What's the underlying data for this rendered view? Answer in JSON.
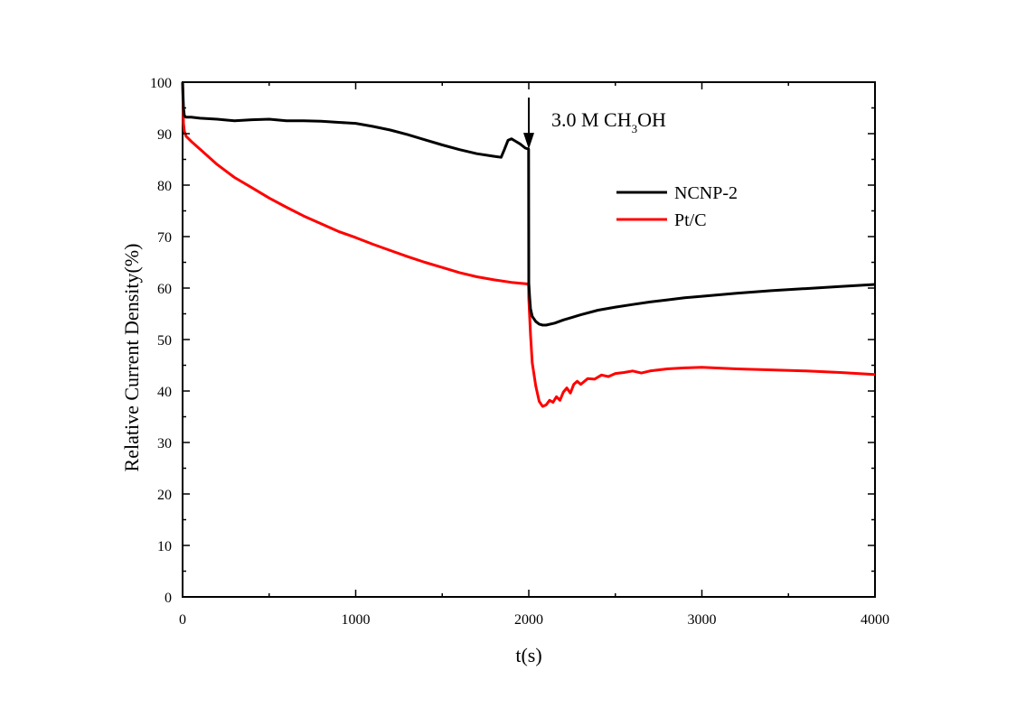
{
  "chart_data": {
    "type": "line",
    "xlabel": "t(s)",
    "ylabel": "Relative Current Density(%)",
    "xlim": [
      0,
      4000
    ],
    "ylim": [
      0,
      100
    ],
    "x_ticks": [
      0,
      1000,
      2000,
      3000,
      4000
    ],
    "y_ticks": [
      0,
      10,
      20,
      30,
      40,
      50,
      60,
      70,
      80,
      90,
      100
    ],
    "x_tick_labels": [
      "0",
      "1000",
      "2000",
      "3000",
      "4000"
    ],
    "y_tick_labels": [
      "0",
      "10",
      "20",
      "30",
      "40",
      "50",
      "60",
      "70",
      "80",
      "90",
      "100"
    ],
    "grid": false,
    "legend_position": "top-right",
    "annotation": {
      "text_main": "3.0 M CH",
      "text_sub": "3",
      "text_tail": "OH",
      "x": 2000,
      "y_tip": 87,
      "y_start": 97
    },
    "series": [
      {
        "name": "NCNP-2",
        "color": "#000000",
        "x": [
          0,
          5,
          10,
          20,
          50,
          100,
          200,
          300,
          400,
          500,
          600,
          700,
          800,
          900,
          1000,
          1100,
          1200,
          1300,
          1400,
          1500,
          1600,
          1700,
          1800,
          1840,
          1860,
          1880,
          1900,
          1920,
          1950,
          1980,
          1999,
          2000,
          2005,
          2010,
          2020,
          2040,
          2060,
          2080,
          2100,
          2150,
          2200,
          2300,
          2400,
          2500,
          2600,
          2700,
          2800,
          2900,
          3000,
          3200,
          3400,
          3600,
          3800,
          4000
        ],
        "y": [
          100,
          95,
          93.5,
          93.2,
          93.2,
          93,
          92.8,
          92.5,
          92.7,
          92.8,
          92.5,
          92.5,
          92.4,
          92.2,
          92,
          91.4,
          90.7,
          89.8,
          88.8,
          87.8,
          86.9,
          86.1,
          85.6,
          85.4,
          87,
          88.7,
          89,
          88.6,
          88,
          87.2,
          87,
          61,
          58,
          56,
          54.5,
          53.5,
          53,
          52.8,
          52.8,
          53.2,
          53.8,
          54.8,
          55.7,
          56.3,
          56.8,
          57.3,
          57.7,
          58.1,
          58.4,
          59,
          59.5,
          59.9,
          60.3,
          60.7
        ]
      },
      {
        "name": "Pt/C",
        "color": "#ff0000",
        "x": [
          0,
          5,
          10,
          20,
          50,
          100,
          200,
          300,
          400,
          500,
          600,
          700,
          800,
          900,
          1000,
          1100,
          1200,
          1300,
          1400,
          1500,
          1600,
          1700,
          1800,
          1900,
          1990,
          1999,
          2000,
          2010,
          2020,
          2040,
          2060,
          2080,
          2100,
          2120,
          2140,
          2160,
          2180,
          2200,
          2220,
          2240,
          2260,
          2280,
          2300,
          2340,
          2380,
          2420,
          2460,
          2500,
          2550,
          2600,
          2650,
          2700,
          2800,
          2900,
          3000,
          3200,
          3400,
          3600,
          3800,
          4000
        ],
        "y": [
          100,
          92,
          90.5,
          89.5,
          88.5,
          87,
          84,
          81.5,
          79.5,
          77.5,
          75.7,
          74,
          72.5,
          71,
          69.8,
          68.5,
          67.3,
          66.1,
          65,
          64,
          63,
          62.2,
          61.6,
          61.1,
          60.8,
          60.6,
          58,
          51,
          45.5,
          41,
          38,
          37,
          37.3,
          38.2,
          37.8,
          38.9,
          38.2,
          39.8,
          40.6,
          39.6,
          41.3,
          41.9,
          41.3,
          42.4,
          42.3,
          43.1,
          42.8,
          43.4,
          43.6,
          43.9,
          43.5,
          43.9,
          44.3,
          44.5,
          44.6,
          44.3,
          44.1,
          43.9,
          43.6,
          43.2
        ]
      }
    ]
  }
}
